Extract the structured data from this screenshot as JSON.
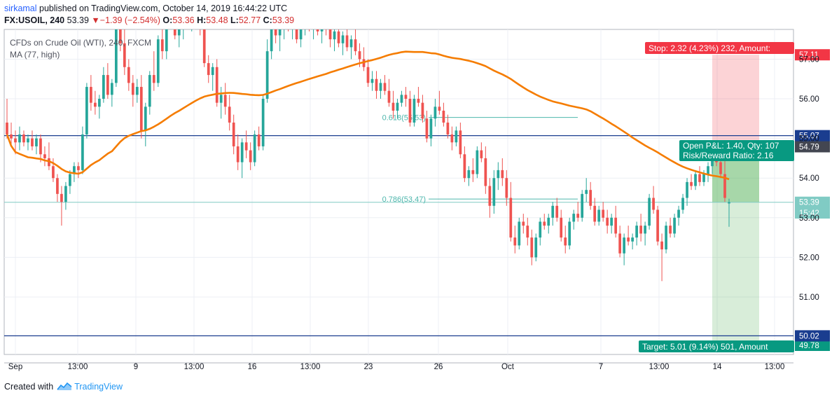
{
  "header": {
    "author": "sirkamal",
    "published": "published on TradingView.com, October 14, 2019 16:44:22 UTC"
  },
  "quote": {
    "symbol": "FX:USOIL, 240",
    "last": "53.39",
    "arrow": "▼",
    "change": "−1.39 (−2.54%)",
    "o_label": "O:",
    "o": "53.36",
    "h_label": "H:",
    "h": "53.48",
    "l_label": "L:",
    "l": "52.77",
    "c_label": "C:",
    "c": "53.39"
  },
  "legend": {
    "instrument": "CFDs on Crude Oil (WTI), 240, FXCM",
    "ma": "MA (77, high)"
  },
  "footer": {
    "created": "Created with",
    "brand": "TradingView"
  },
  "chart_data": {
    "type": "candlestick",
    "ylim": [
      49.55,
      57.75
    ],
    "yticks": [
      51.0,
      52.0,
      53.0,
      54.0,
      55.0,
      56.0,
      57.0
    ],
    "ytick_labels": [
      "51.00",
      "52.00",
      "53.00",
      "54.00",
      "55.00",
      "56.00",
      "57.00"
    ],
    "xticks": [
      "Sep",
      "13:00",
      "9",
      "13:00",
      "16",
      "13:00",
      "23",
      "26",
      "Oct",
      "7",
      "13:00",
      "14",
      "13:00"
    ],
    "colors": {
      "up": "#26a69a",
      "down": "#ef5350",
      "ma": "#f57c00",
      "hline": "#1a3d8f",
      "fib": "#4db6ac",
      "last": "#80cbc4"
    },
    "horizontal_lines": [
      {
        "price": 55.07,
        "label": "55.07"
      },
      {
        "price": 50.02,
        "label": "50.02"
      }
    ],
    "fib_levels": [
      {
        "label": "0.618(55.53)",
        "price": 55.53
      },
      {
        "label": "0.786(53.47)",
        "price": 53.47
      }
    ],
    "price_labels": [
      {
        "text": "57.11",
        "price": 57.11,
        "color": "#f23645"
      },
      {
        "text": "54.79",
        "price": 54.79,
        "color": "#434651"
      },
      {
        "text": "53.39",
        "price": 53.39,
        "color": "#80cbc4"
      },
      {
        "text": "15:42",
        "price": 53.12,
        "color": "#80cbc4"
      },
      {
        "text": "49.78",
        "price": 49.78,
        "color": "#089981"
      }
    ],
    "position": {
      "entry": 54.79,
      "stop": 57.11,
      "target": 49.78,
      "current": 53.39,
      "stop_text": "Stop: 2.32 (4.23%) 232, Amount:",
      "open_text": "Open P&L: 1.40, Qty: 107",
      "rr_text": "Risk/Reward Ratio: 2.16",
      "target_text": "Target: 5.01 (9.14%) 501, Amount"
    },
    "candles": [
      [
        55.4,
        56.0,
        55.0,
        55.1
      ],
      [
        55.1,
        55.4,
        54.8,
        55.0
      ],
      [
        55.0,
        55.2,
        54.6,
        54.9
      ],
      [
        54.9,
        55.3,
        54.7,
        55.1
      ],
      [
        55.1,
        55.2,
        54.8,
        54.9
      ],
      [
        54.9,
        55.1,
        54.7,
        55.0
      ],
      [
        55.0,
        55.2,
        54.7,
        54.8
      ],
      [
        54.8,
        55.1,
        54.6,
        55.0
      ],
      [
        55.0,
        55.1,
        54.4,
        54.6
      ],
      [
        54.6,
        54.8,
        54.3,
        54.5
      ],
      [
        54.5,
        54.9,
        54.2,
        54.3
      ],
      [
        54.3,
        54.5,
        53.9,
        54.0
      ],
      [
        54.0,
        54.1,
        53.4,
        53.6
      ],
      [
        53.6,
        53.8,
        52.8,
        53.4
      ],
      [
        53.4,
        53.9,
        53.2,
        53.8
      ],
      [
        53.8,
        54.2,
        53.6,
        54.1
      ],
      [
        54.1,
        54.4,
        53.9,
        54.3
      ],
      [
        54.3,
        54.4,
        54.0,
        54.2
      ],
      [
        54.2,
        55.3,
        54.1,
        55.1
      ],
      [
        55.1,
        56.4,
        55.0,
        56.3
      ],
      [
        56.3,
        56.6,
        55.7,
        55.9
      ],
      [
        55.9,
        56.2,
        55.6,
        55.8
      ],
      [
        55.8,
        56.1,
        55.5,
        56.0
      ],
      [
        56.0,
        56.8,
        55.9,
        56.6
      ],
      [
        56.6,
        56.9,
        56.0,
        56.1
      ],
      [
        56.1,
        56.5,
        55.8,
        56.4
      ],
      [
        56.4,
        58.2,
        56.3,
        58.0
      ],
      [
        58.0,
        58.4,
        57.2,
        57.4
      ],
      [
        57.4,
        57.8,
        56.6,
        56.8
      ],
      [
        56.8,
        57.0,
        56.2,
        56.4
      ],
      [
        56.4,
        56.6,
        55.8,
        56.1
      ],
      [
        56.1,
        56.5,
        55.9,
        56.3
      ],
      [
        56.3,
        56.6,
        55.0,
        55.2
      ],
      [
        55.2,
        55.9,
        54.8,
        55.8
      ],
      [
        55.8,
        56.7,
        55.6,
        56.6
      ],
      [
        56.6,
        57.2,
        56.2,
        56.4
      ],
      [
        56.4,
        57.6,
        56.3,
        57.5
      ],
      [
        57.5,
        58.0,
        57.0,
        57.2
      ],
      [
        57.2,
        58.3,
        57.0,
        58.2
      ],
      [
        58.2,
        58.5,
        57.8,
        58.0
      ],
      [
        58.0,
        58.3,
        57.5,
        57.6
      ],
      [
        57.6,
        58.0,
        57.3,
        57.8
      ],
      [
        57.8,
        58.4,
        57.5,
        58.3
      ],
      [
        58.3,
        58.6,
        57.9,
        58.1
      ],
      [
        58.1,
        58.5,
        57.7,
        58.4
      ],
      [
        58.4,
        58.6,
        58.0,
        58.2
      ],
      [
        58.2,
        58.4,
        57.6,
        57.8
      ],
      [
        57.8,
        58.0,
        56.8,
        56.9
      ],
      [
        56.9,
        57.1,
        56.4,
        56.6
      ],
      [
        56.6,
        56.9,
        56.2,
        56.8
      ],
      [
        56.8,
        57.0,
        55.8,
        55.9
      ],
      [
        55.9,
        56.3,
        55.5,
        56.1
      ],
      [
        56.1,
        56.4,
        55.6,
        55.8
      ],
      [
        55.8,
        56.1,
        55.2,
        55.4
      ],
      [
        55.4,
        55.6,
        54.6,
        54.8
      ],
      [
        54.8,
        55.1,
        54.2,
        54.4
      ],
      [
        54.4,
        55.0,
        54.0,
        54.9
      ],
      [
        54.9,
        55.2,
        54.5,
        54.7
      ],
      [
        54.7,
        54.9,
        54.2,
        54.4
      ],
      [
        54.4,
        55.2,
        54.3,
        55.1
      ],
      [
        55.1,
        55.3,
        54.7,
        54.8
      ],
      [
        54.8,
        56.1,
        54.7,
        56.0
      ],
      [
        56.0,
        57.5,
        55.9,
        57.2
      ],
      [
        57.2,
        58.1,
        57.0,
        57.9
      ],
      [
        57.9,
        58.2,
        57.4,
        57.6
      ],
      [
        57.6,
        57.9,
        57.2,
        57.8
      ],
      [
        57.8,
        58.3,
        57.5,
        58.1
      ],
      [
        58.1,
        58.4,
        57.7,
        57.9
      ],
      [
        57.9,
        58.2,
        57.5,
        58.0
      ],
      [
        58.0,
        58.1,
        57.4,
        57.5
      ],
      [
        57.5,
        57.9,
        57.3,
        57.8
      ],
      [
        57.8,
        58.2,
        57.6,
        58.0
      ],
      [
        58.0,
        58.3,
        57.7,
        57.8
      ],
      [
        57.8,
        58.1,
        57.5,
        58.0
      ],
      [
        58.0,
        58.2,
        57.6,
        57.7
      ],
      [
        57.7,
        58.0,
        57.4,
        57.9
      ],
      [
        57.9,
        58.2,
        57.6,
        57.8
      ],
      [
        57.8,
        58.1,
        57.3,
        57.5
      ],
      [
        57.5,
        57.8,
        57.2,
        57.7
      ],
      [
        57.7,
        57.9,
        57.3,
        57.4
      ],
      [
        57.4,
        57.7,
        57.1,
        57.6
      ],
      [
        57.6,
        57.9,
        57.2,
        57.3
      ],
      [
        57.3,
        57.6,
        57.0,
        57.5
      ],
      [
        57.5,
        57.8,
        57.1,
        57.2
      ],
      [
        57.2,
        57.4,
        56.8,
        57.0
      ],
      [
        57.0,
        57.3,
        56.7,
        56.8
      ],
      [
        56.8,
        57.0,
        56.3,
        56.4
      ],
      [
        56.4,
        56.7,
        56.2,
        56.5
      ],
      [
        56.5,
        56.7,
        56.0,
        56.2
      ],
      [
        56.2,
        56.5,
        56.0,
        56.4
      ],
      [
        56.4,
        56.6,
        56.1,
        56.2
      ],
      [
        56.2,
        56.5,
        55.8,
        55.9
      ],
      [
        55.9,
        56.2,
        55.5,
        55.7
      ],
      [
        55.7,
        56.0,
        55.5,
        55.9
      ],
      [
        55.9,
        56.2,
        55.8,
        56.1
      ],
      [
        56.1,
        56.3,
        55.8,
        56.0
      ],
      [
        56.0,
        56.2,
        55.3,
        55.4
      ],
      [
        55.4,
        56.1,
        55.3,
        56.0
      ],
      [
        56.0,
        56.3,
        55.8,
        55.9
      ],
      [
        55.9,
        56.1,
        55.4,
        55.5
      ],
      [
        55.5,
        55.7,
        54.9,
        55.0
      ],
      [
        55.0,
        55.6,
        54.8,
        55.5
      ],
      [
        55.5,
        56.0,
        55.3,
        55.8
      ],
      [
        55.8,
        56.2,
        55.6,
        55.7
      ],
      [
        55.7,
        55.9,
        55.3,
        55.4
      ],
      [
        55.4,
        55.6,
        55.0,
        55.1
      ],
      [
        55.1,
        55.3,
        54.7,
        54.9
      ],
      [
        54.9,
        55.3,
        54.8,
        55.2
      ],
      [
        55.2,
        55.4,
        54.5,
        54.6
      ],
      [
        54.6,
        54.8,
        53.9,
        54.0
      ],
      [
        54.0,
        54.3,
        53.8,
        54.2
      ],
      [
        54.2,
        54.5,
        53.9,
        54.1
      ],
      [
        54.1,
        54.8,
        54.0,
        54.7
      ],
      [
        54.7,
        54.9,
        54.4,
        54.5
      ],
      [
        54.5,
        54.8,
        53.6,
        53.8
      ],
      [
        53.8,
        54.0,
        53.0,
        53.3
      ],
      [
        53.3,
        54.2,
        53.1,
        54.0
      ],
      [
        54.0,
        54.4,
        53.7,
        54.2
      ],
      [
        54.2,
        54.5,
        53.8,
        54.0
      ],
      [
        54.0,
        54.2,
        53.3,
        53.5
      ],
      [
        53.5,
        53.9,
        52.4,
        52.5
      ],
      [
        52.5,
        52.8,
        52.1,
        52.3
      ],
      [
        52.3,
        53.0,
        52.2,
        52.9
      ],
      [
        52.9,
        53.1,
        52.6,
        52.8
      ],
      [
        52.8,
        53.0,
        52.3,
        52.5
      ],
      [
        52.5,
        52.7,
        51.8,
        52.0
      ],
      [
        52.0,
        52.6,
        51.9,
        52.5
      ],
      [
        52.5,
        53.0,
        52.3,
        52.9
      ],
      [
        52.9,
        53.1,
        52.7,
        52.8
      ],
      [
        52.8,
        53.1,
        52.6,
        53.0
      ],
      [
        53.0,
        53.4,
        52.8,
        53.3
      ],
      [
        53.3,
        53.5,
        52.9,
        53.0
      ],
      [
        53.0,
        53.2,
        52.4,
        52.5
      ],
      [
        52.5,
        52.8,
        52.1,
        52.3
      ],
      [
        52.3,
        53.0,
        52.2,
        52.9
      ],
      [
        52.9,
        53.2,
        52.7,
        53.1
      ],
      [
        53.1,
        53.4,
        52.9,
        53.0
      ],
      [
        53.0,
        53.7,
        52.9,
        53.6
      ],
      [
        53.6,
        54.0,
        53.4,
        53.7
      ],
      [
        53.7,
        53.9,
        53.2,
        53.3
      ],
      [
        53.3,
        53.5,
        52.8,
        52.9
      ],
      [
        52.9,
        53.3,
        52.8,
        53.2
      ],
      [
        53.2,
        53.4,
        52.9,
        53.0
      ],
      [
        53.0,
        53.2,
        52.6,
        52.8
      ],
      [
        52.8,
        53.1,
        52.6,
        53.0
      ],
      [
        53.0,
        53.3,
        52.5,
        52.6
      ],
      [
        52.6,
        52.8,
        52.0,
        52.1
      ],
      [
        52.1,
        52.6,
        51.8,
        52.5
      ],
      [
        52.5,
        52.8,
        52.3,
        52.4
      ],
      [
        52.4,
        52.6,
        52.2,
        52.5
      ],
      [
        52.5,
        52.9,
        52.3,
        52.8
      ],
      [
        52.8,
        53.1,
        52.4,
        52.6
      ],
      [
        52.6,
        52.9,
        52.3,
        52.8
      ],
      [
        52.8,
        53.6,
        52.7,
        53.5
      ],
      [
        53.5,
        53.8,
        53.1,
        53.2
      ],
      [
        53.2,
        53.3,
        52.3,
        52.4
      ],
      [
        52.4,
        52.6,
        51.4,
        52.2
      ],
      [
        52.2,
        52.9,
        52.1,
        52.8
      ],
      [
        52.8,
        53.0,
        52.5,
        52.6
      ],
      [
        52.6,
        53.1,
        52.5,
        53.0
      ],
      [
        53.0,
        53.3,
        52.8,
        53.2
      ],
      [
        53.2,
        53.6,
        53.1,
        53.5
      ],
      [
        53.5,
        54.0,
        53.3,
        53.9
      ],
      [
        53.9,
        54.1,
        53.7,
        53.8
      ],
      [
        53.8,
        54.2,
        53.7,
        54.1
      ],
      [
        54.1,
        54.3,
        53.8,
        53.9
      ],
      [
        53.9,
        54.2,
        53.8,
        54.1
      ],
      [
        54.1,
        54.4,
        53.9,
        54.3
      ],
      [
        54.3,
        54.8,
        54.1,
        54.7
      ],
      [
        54.7,
        54.9,
        54.3,
        54.4
      ],
      [
        54.4,
        54.6,
        54.0,
        54.1
      ],
      [
        54.1,
        54.5,
        53.4,
        53.5
      ],
      [
        53.36,
        53.48,
        52.77,
        53.39
      ]
    ]
  }
}
